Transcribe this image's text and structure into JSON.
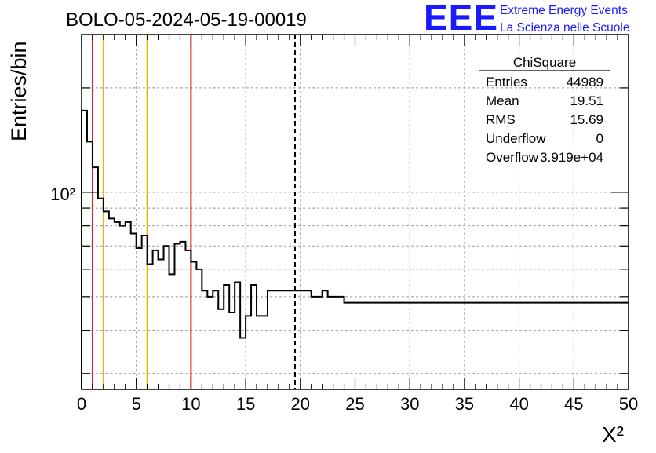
{
  "page": {
    "title": "BOLO-05-2024-05-19-00019",
    "logo": {
      "big": "EEE",
      "line1": "Extreme Energy Events",
      "line2": "La Scienza nelle Scuole",
      "color": "#1a1aff"
    }
  },
  "stats": {
    "title": "ChiSquare",
    "rows": [
      {
        "label": "Entries",
        "value": "44989"
      },
      {
        "label": "Mean",
        "value": "19.51"
      },
      {
        "label": "RMS",
        "value": "15.69"
      },
      {
        "label": "Underflow",
        "value": "0"
      },
      {
        "label": "Overflow",
        "value": "3.919e+04"
      }
    ]
  },
  "chart_data": {
    "type": "histogram",
    "title": "BOLO-05-2024-05-19-00019",
    "xlabel": "X²",
    "ylabel": "Entries/bin",
    "xlim": [
      0,
      50
    ],
    "ylim": [
      27,
      285
    ],
    "log_y": true,
    "grid": true,
    "bin_width": 0.5,
    "x_ticks": [
      0,
      5,
      10,
      15,
      20,
      25,
      30,
      35,
      40,
      45,
      50
    ],
    "x_tick_labels": [
      "0",
      "5",
      "10",
      "15",
      "20",
      "25",
      "30",
      "35",
      "40",
      "45",
      "50"
    ],
    "y_ticks": [
      100
    ],
    "y_tick_labels": [
      "10²"
    ],
    "values": [
      172,
      140,
      118,
      96,
      88,
      84,
      82,
      80,
      82,
      76,
      69,
      75,
      62,
      68,
      64,
      70,
      58,
      71,
      72,
      68,
      63,
      60,
      52,
      50,
      52,
      46,
      54,
      45,
      55,
      38,
      44,
      54,
      44,
      44,
      52,
      52,
      52,
      52,
      52,
      52,
      52,
      52,
      50,
      50,
      52,
      50,
      50,
      50,
      48,
      48,
      48,
      48,
      48,
      48,
      48,
      48,
      48,
      48,
      48,
      48,
      48,
      48,
      48,
      48,
      48,
      48,
      48,
      48,
      48,
      48,
      48,
      48,
      48,
      48,
      48,
      48,
      48,
      48,
      48,
      48,
      48,
      48,
      48,
      48,
      48,
      48,
      48,
      48,
      48,
      48,
      48,
      48,
      48,
      48,
      48,
      48,
      48,
      48,
      48,
      48
    ],
    "vertical_lines": [
      {
        "x": 1,
        "color": "#dd2222",
        "style": "solid"
      },
      {
        "x": 2,
        "color": "#f0b400",
        "style": "solid"
      },
      {
        "x": 6,
        "color": "#f0b400",
        "style": "solid"
      },
      {
        "x": 10,
        "color": "#dd2222",
        "style": "solid"
      },
      {
        "x": 19.51,
        "color": "#000000",
        "style": "dashed"
      }
    ]
  }
}
